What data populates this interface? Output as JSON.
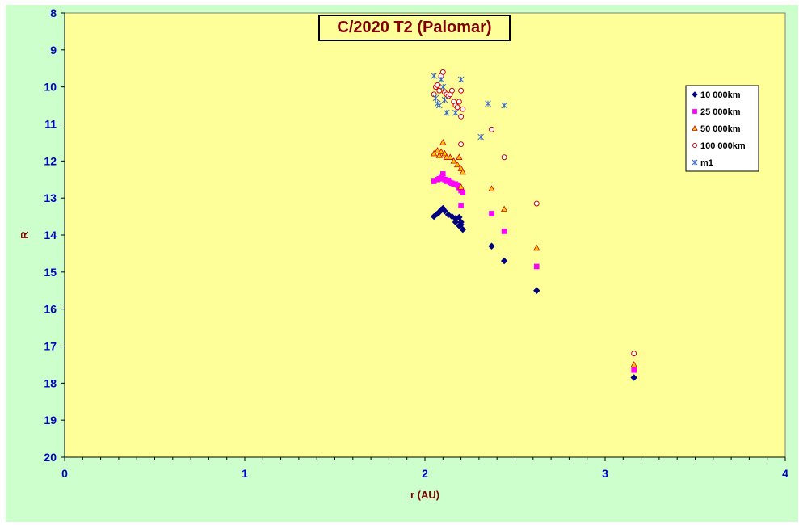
{
  "chart_data": {
    "type": "scatter",
    "title": "C/2020 T2 (Palomar)",
    "xlabel": "r (AU)",
    "ylabel": "R",
    "xlim": [
      0,
      4
    ],
    "ylim": [
      8,
      20
    ],
    "y_inverted": true,
    "x_ticks": [
      "0",
      "1",
      "2",
      "3",
      "4"
    ],
    "y_ticks": [
      "8",
      "9",
      "10",
      "11",
      "12",
      "13",
      "14",
      "15",
      "16",
      "17",
      "18",
      "19",
      "20"
    ],
    "grid": false,
    "legend_position": "right",
    "colors": {
      "plot_bg": "#ffff99",
      "outer_bg": "#ccffcc",
      "tick_text": "#0000cc",
      "title_text": "#800000"
    },
    "series": [
      {
        "name": "10 000km",
        "marker": "diamond",
        "color": "#000080",
        "points": [
          [
            2.05,
            13.5
          ],
          [
            2.07,
            13.42
          ],
          [
            2.08,
            13.38
          ],
          [
            2.09,
            13.32
          ],
          [
            2.1,
            13.28
          ],
          [
            2.11,
            13.35
          ],
          [
            2.13,
            13.45
          ],
          [
            2.15,
            13.5
          ],
          [
            2.17,
            13.55
          ],
          [
            2.19,
            13.52
          ],
          [
            2.2,
            13.65
          ],
          [
            2.2,
            13.72
          ],
          [
            2.21,
            13.85
          ],
          [
            2.17,
            13.65
          ],
          [
            2.19,
            13.75
          ],
          [
            2.37,
            14.3
          ],
          [
            2.44,
            14.7
          ],
          [
            2.62,
            15.5
          ],
          [
            3.16,
            17.85
          ]
        ]
      },
      {
        "name": "25 000km",
        "marker": "square",
        "color": "#ff00ff",
        "points": [
          [
            2.05,
            12.55
          ],
          [
            2.07,
            12.5
          ],
          [
            2.08,
            12.48
          ],
          [
            2.09,
            12.45
          ],
          [
            2.1,
            12.35
          ],
          [
            2.11,
            12.5
          ],
          [
            2.12,
            12.55
          ],
          [
            2.13,
            12.52
          ],
          [
            2.14,
            12.58
          ],
          [
            2.15,
            12.6
          ],
          [
            2.16,
            12.62
          ],
          [
            2.17,
            12.62
          ],
          [
            2.18,
            12.65
          ],
          [
            2.19,
            12.72
          ],
          [
            2.2,
            12.8
          ],
          [
            2.21,
            12.85
          ],
          [
            2.2,
            13.2
          ],
          [
            2.37,
            13.42
          ],
          [
            2.44,
            13.9
          ],
          [
            2.62,
            14.85
          ],
          [
            3.16,
            17.65
          ]
        ]
      },
      {
        "name": "50 000km",
        "marker": "triangle",
        "color": "#ffcc00",
        "stroke": "#cc0000",
        "points": [
          [
            2.05,
            11.8
          ],
          [
            2.07,
            11.72
          ],
          [
            2.08,
            11.85
          ],
          [
            2.09,
            11.75
          ],
          [
            2.1,
            11.5
          ],
          [
            2.11,
            11.8
          ],
          [
            2.12,
            11.9
          ],
          [
            2.14,
            11.9
          ],
          [
            2.16,
            12.0
          ],
          [
            2.18,
            12.1
          ],
          [
            2.19,
            11.9
          ],
          [
            2.2,
            12.2
          ],
          [
            2.21,
            12.3
          ],
          [
            2.2,
            12.7
          ],
          [
            2.37,
            12.75
          ],
          [
            2.44,
            13.3
          ],
          [
            2.62,
            14.35
          ],
          [
            3.16,
            17.5
          ]
        ]
      },
      {
        "name": "100 000km",
        "marker": "circle",
        "color": "#ffffff",
        "stroke": "#cc0000",
        "points": [
          [
            2.05,
            10.2
          ],
          [
            2.06,
            10.0
          ],
          [
            2.07,
            9.95
          ],
          [
            2.08,
            10.1
          ],
          [
            2.09,
            9.7
          ],
          [
            2.1,
            9.6
          ],
          [
            2.11,
            10.15
          ],
          [
            2.12,
            10.2
          ],
          [
            2.13,
            10.25
          ],
          [
            2.14,
            10.2
          ],
          [
            2.15,
            10.1
          ],
          [
            2.16,
            10.4
          ],
          [
            2.17,
            10.5
          ],
          [
            2.18,
            10.55
          ],
          [
            2.19,
            10.4
          ],
          [
            2.2,
            10.1
          ],
          [
            2.2,
            10.8
          ],
          [
            2.21,
            10.6
          ],
          [
            2.2,
            11.55
          ],
          [
            2.37,
            11.15
          ],
          [
            2.44,
            11.9
          ],
          [
            2.62,
            13.15
          ],
          [
            3.16,
            17.2
          ]
        ]
      },
      {
        "name": "m1",
        "marker": "asterisk",
        "color": "#3366cc",
        "points": [
          [
            2.05,
            9.7
          ],
          [
            2.06,
            10.3
          ],
          [
            2.07,
            10.45
          ],
          [
            2.08,
            10.5
          ],
          [
            2.09,
            9.8
          ],
          [
            2.1,
            10.0
          ],
          [
            2.11,
            10.35
          ],
          [
            2.12,
            10.7
          ],
          [
            2.17,
            10.7
          ],
          [
            2.2,
            9.8
          ],
          [
            2.31,
            11.35
          ],
          [
            2.35,
            10.45
          ],
          [
            2.44,
            10.5
          ]
        ]
      }
    ]
  }
}
